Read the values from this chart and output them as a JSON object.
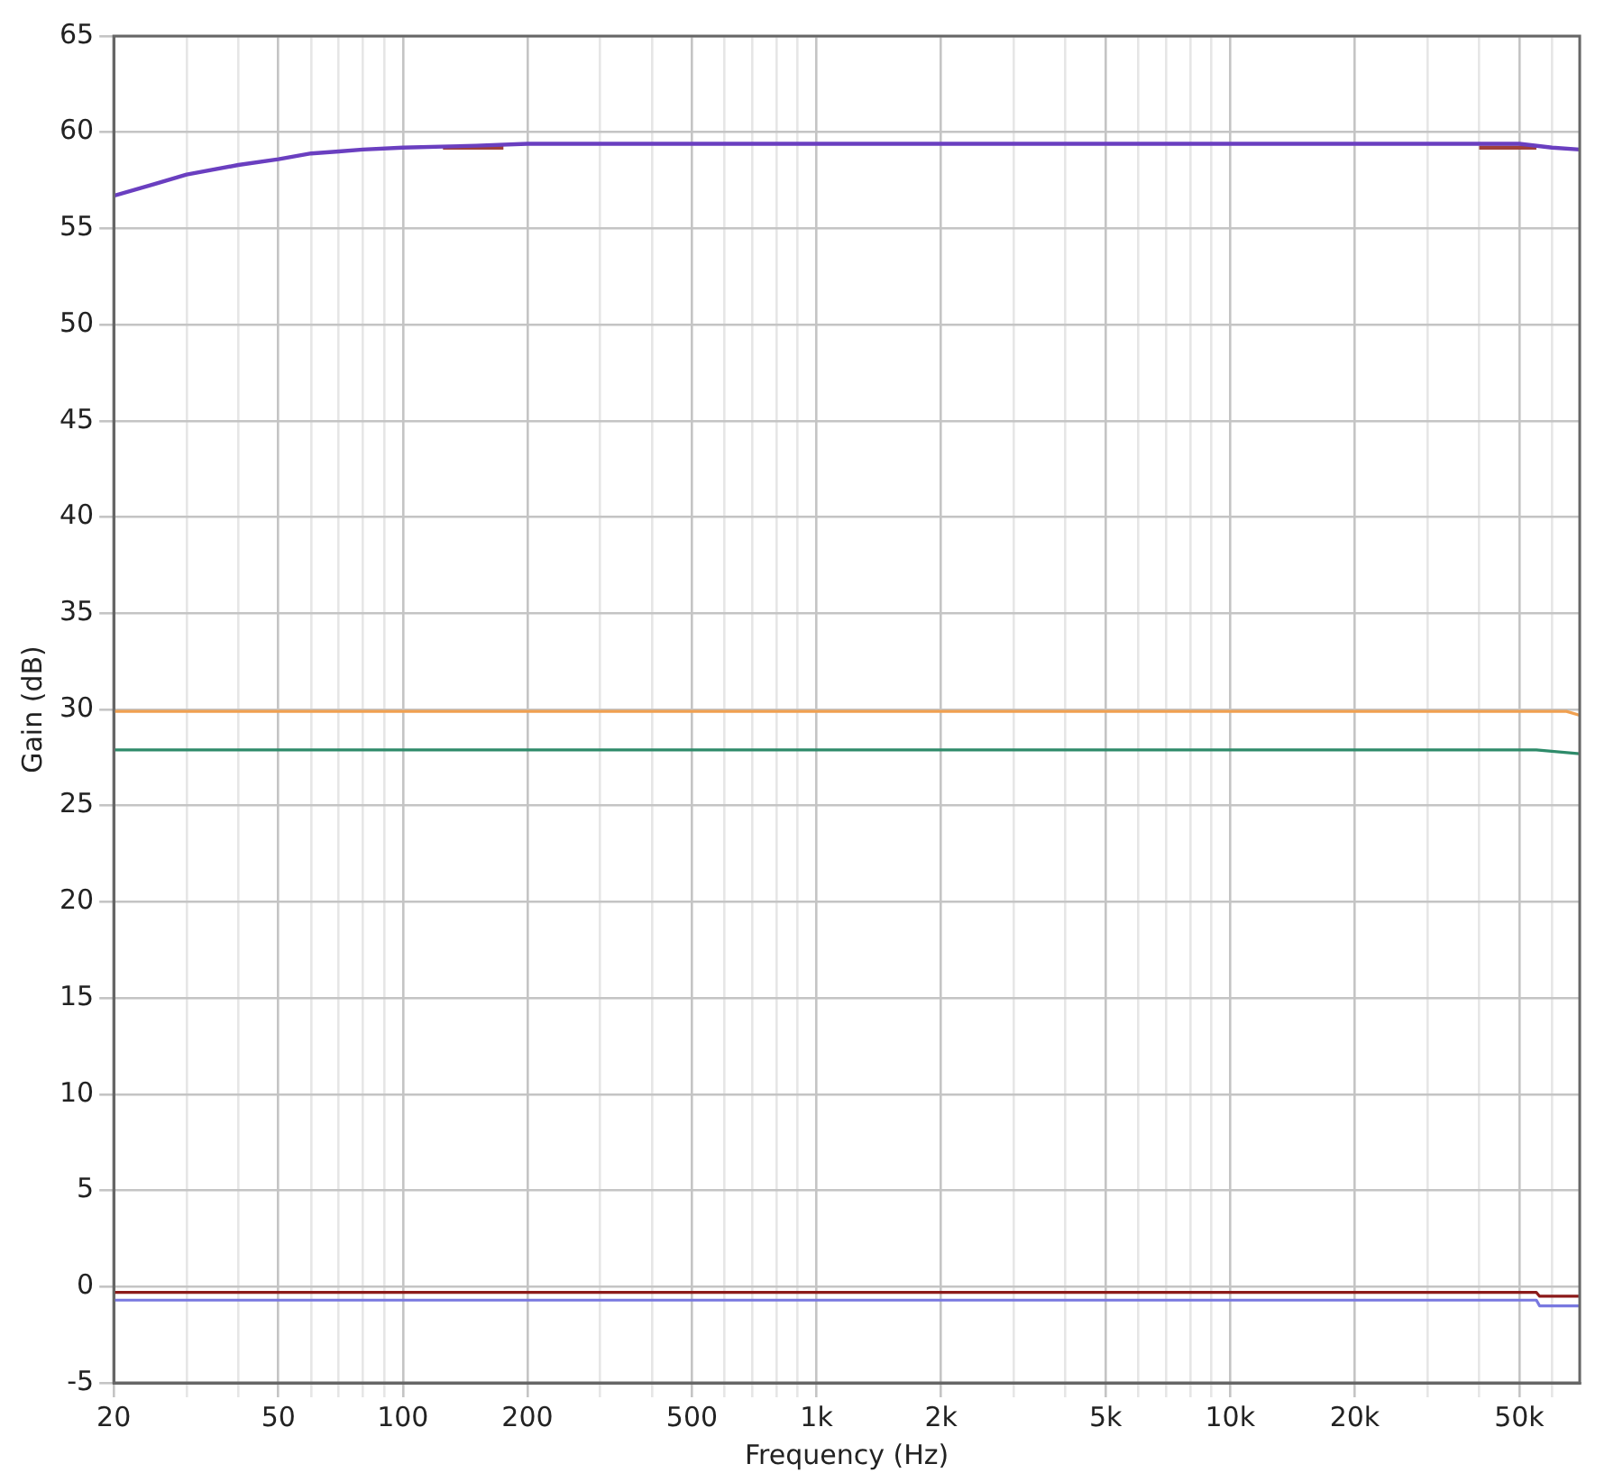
{
  "chart_data": {
    "type": "line",
    "xlabel": "Frequency (Hz)",
    "ylabel": "Gain (dB)",
    "log": "x",
    "grid": true,
    "legend": false,
    "marker": "none",
    "line_style": "solid",
    "xlim": [
      20,
      70000
    ],
    "xticks": [
      20,
      {
        "value": 30,
        "label": null
      },
      {
        "value": 40,
        "label": null
      },
      50,
      {
        "value": 60,
        "label": null
      },
      {
        "value": 70,
        "label": null
      },
      {
        "value": 80,
        "label": null
      },
      {
        "value": 90,
        "label": null
      },
      100,
      200,
      {
        "value": 300,
        "label": null
      },
      {
        "value": 400,
        "label": null
      },
      500,
      {
        "value": 600,
        "label": null
      },
      {
        "value": 700,
        "label": null
      },
      {
        "value": 800,
        "label": null
      },
      {
        "value": 900,
        "label": null
      },
      {
        "value": 1000,
        "label": "1k"
      },
      {
        "value": 2000,
        "label": "2k"
      },
      {
        "value": 3000,
        "label": null
      },
      {
        "value": 4000,
        "label": null
      },
      {
        "value": 5000,
        "label": "5k"
      },
      {
        "value": 6000,
        "label": null
      },
      {
        "value": 7000,
        "label": null
      },
      {
        "value": 8000,
        "label": null
      },
      {
        "value": 9000,
        "label": null
      },
      {
        "value": 10000,
        "label": "10k"
      },
      {
        "value": 20000,
        "label": "20k"
      },
      {
        "value": 30000,
        "label": null
      },
      {
        "value": 40000,
        "label": null
      },
      {
        "value": 50000,
        "label": "50k"
      },
      {
        "value": 60000,
        "label": null
      }
    ],
    "ylim": [
      -5,
      65
    ],
    "yticks": [
      -5,
      0,
      5,
      10,
      15,
      20,
      25,
      30,
      35,
      40,
      45,
      50,
      55,
      60,
      65
    ],
    "series": [
      {
        "color": "#a0403a",
        "x": [
          125,
          175,
          1000,
          40000,
          55000
        ],
        "values": [
          59.2,
          59.2,
          null,
          59.2,
          59.2
        ]
      },
      {
        "color": "#6a3fc0",
        "x": [
          20,
          25,
          30,
          40,
          50,
          60,
          70,
          80,
          100,
          150,
          200,
          1000,
          10000,
          50000,
          60000,
          70000
        ],
        "values": [
          56.7,
          57.3,
          57.8,
          58.3,
          58.6,
          58.9,
          59.0,
          59.1,
          59.2,
          59.3,
          59.4,
          59.4,
          59.4,
          59.4,
          59.2,
          59.1
        ]
      },
      {
        "color": "#f0a050",
        "x": [
          20,
          1000,
          10000,
          65000,
          70000
        ],
        "values": [
          29.9,
          29.9,
          29.9,
          29.9,
          29.7
        ]
      },
      {
        "color": "#2e8b6a",
        "x": [
          20,
          1000,
          10000,
          55000,
          70000
        ],
        "values": [
          27.9,
          27.9,
          27.9,
          27.9,
          27.7
        ]
      },
      {
        "color": "#8b1a1a",
        "x": [
          20,
          1000,
          10000,
          55000,
          56000,
          70000
        ],
        "values": [
          -0.3,
          -0.3,
          -0.3,
          -0.3,
          -0.5,
          -0.5
        ]
      },
      {
        "color": "#7878e0",
        "x": [
          20,
          1000,
          10000,
          55000,
          56000,
          70000
        ],
        "values": [
          -0.7,
          -0.7,
          -0.7,
          -0.7,
          -1.0,
          -1.0
        ]
      }
    ]
  }
}
